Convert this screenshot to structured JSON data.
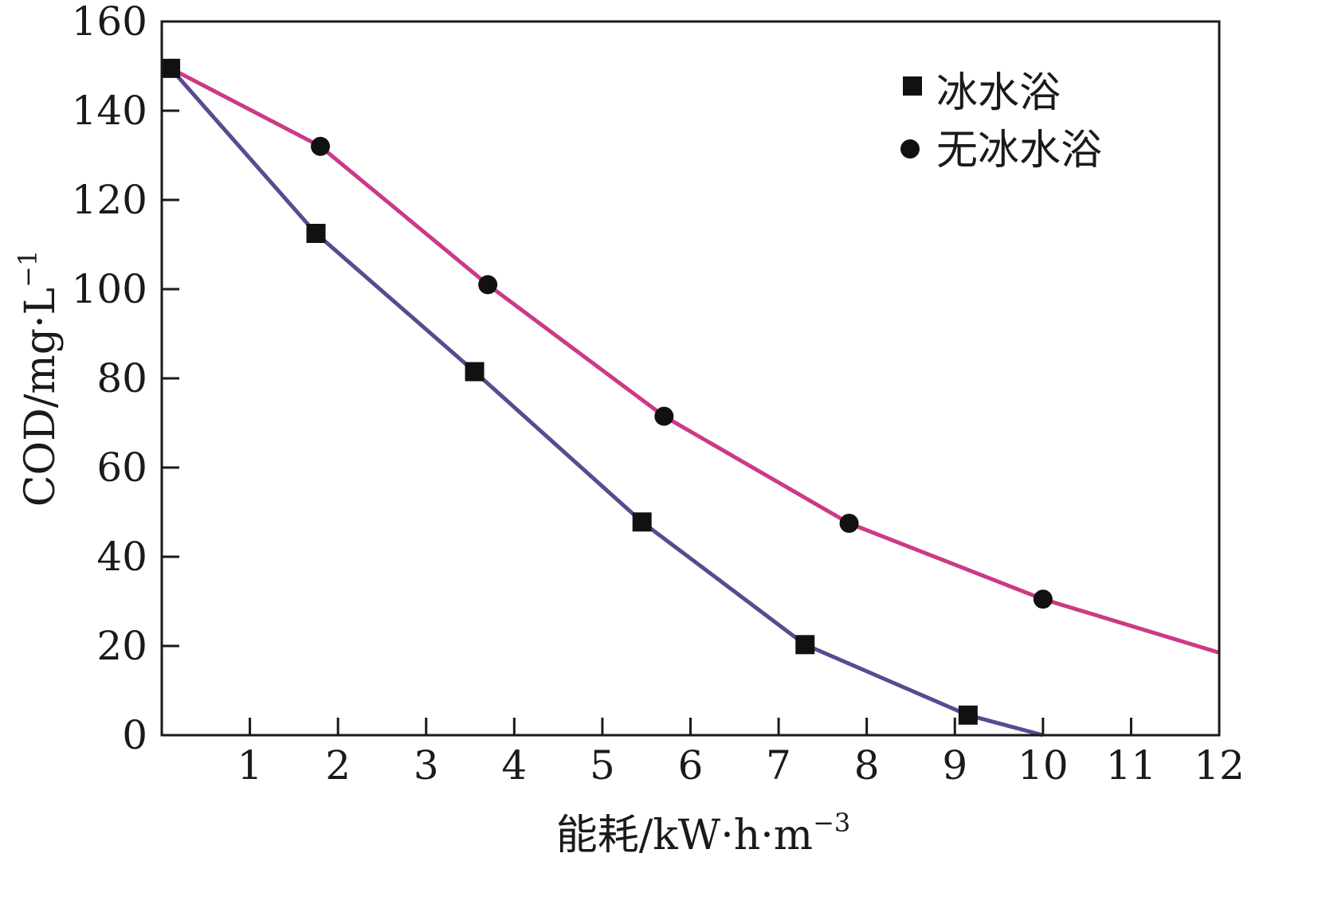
{
  "chart_data": {
    "type": "line",
    "xlabel_main": "能耗/kW·h·m",
    "xlabel_sup": "−3",
    "ylabel_main": "COD/mg·L",
    "ylabel_sup": "−1",
    "xlim": [
      0,
      12
    ],
    "ylim": [
      0,
      160
    ],
    "xticks": [
      1,
      2,
      3,
      4,
      5,
      6,
      7,
      8,
      9,
      10,
      11,
      12
    ],
    "yticks": [
      0,
      20,
      40,
      60,
      80,
      100,
      120,
      140,
      160
    ],
    "grid": false,
    "legend_position": "top-right",
    "series": [
      {
        "name": "冰水浴",
        "marker": "square",
        "color": "#5b4a8f",
        "x": [
          0.1,
          1.75,
          3.55,
          5.45,
          7.3,
          9.15
        ],
        "y": [
          149.5,
          112.5,
          81.5,
          47.8,
          20.3,
          4.5
        ],
        "line_x": [
          0,
          0.1,
          1.75,
          3.55,
          5.45,
          7.3,
          9.15,
          10.0
        ],
        "line_y": [
          148,
          149.5,
          112.5,
          81.5,
          47.8,
          20.3,
          4.5,
          0
        ]
      },
      {
        "name": "无冰水浴",
        "marker": "circle",
        "color": "#cc3a86",
        "x": [
          0.1,
          1.8,
          3.7,
          5.7,
          7.8,
          10.0
        ],
        "y": [
          149.5,
          132,
          101,
          71.5,
          47.5,
          30.5
        ],
        "line_x": [
          0,
          0.1,
          1.8,
          3.7,
          5.7,
          7.8,
          10.0,
          12.0
        ],
        "line_y": [
          149.7,
          149.5,
          132,
          101,
          71.5,
          47.5,
          30.5,
          18.5
        ]
      }
    ]
  }
}
